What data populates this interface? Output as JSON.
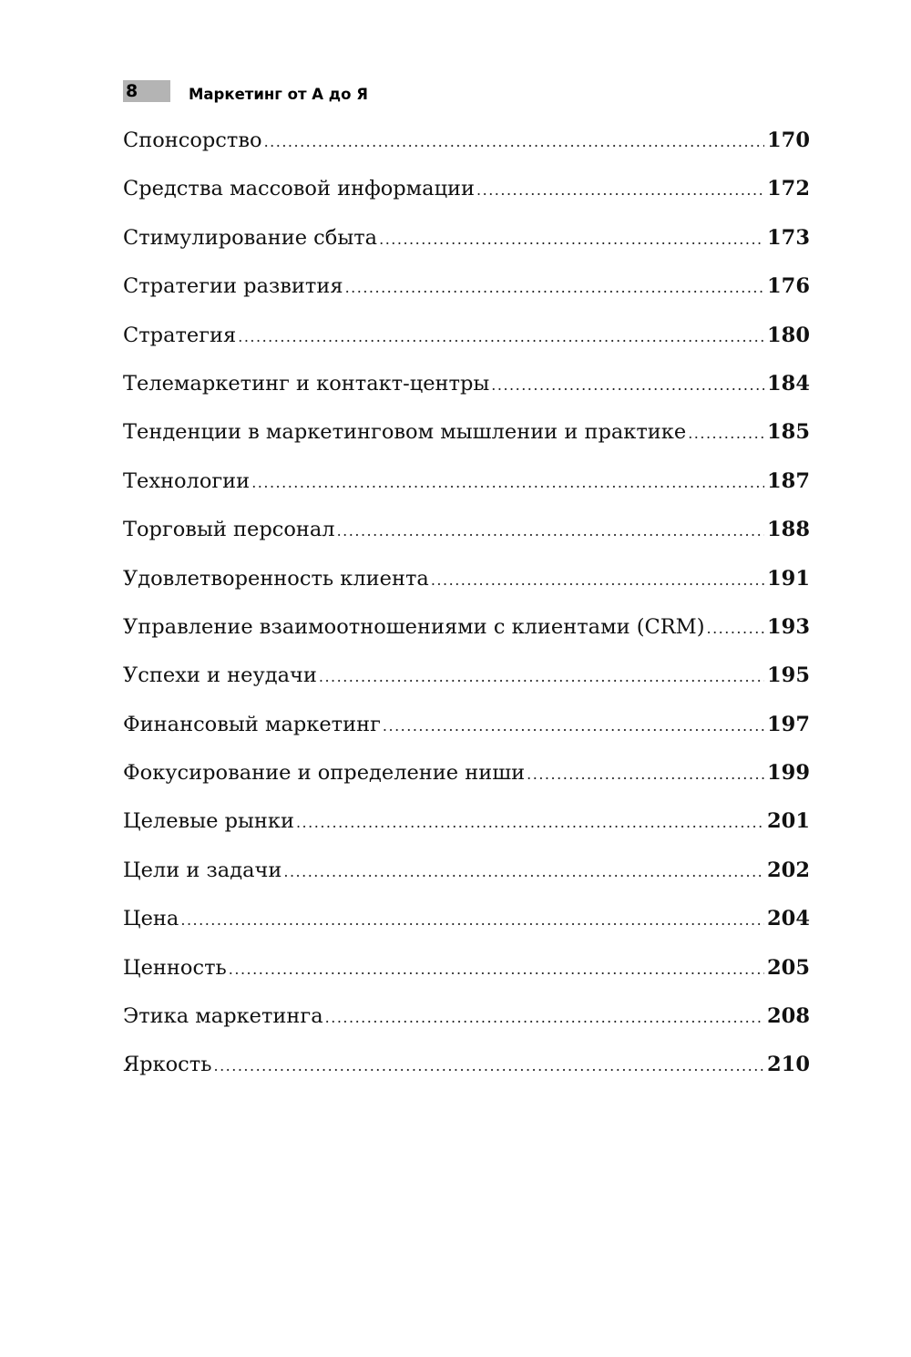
{
  "header": {
    "page_number": "8",
    "running_title": "Маркетинг от А до Я"
  },
  "toc": [
    {
      "title": "Спонсорство",
      "page": "170"
    },
    {
      "title": "Средства массовой информации",
      "page": "172"
    },
    {
      "title": "Стимулирование сбыта",
      "page": "173"
    },
    {
      "title": "Стратегии развития",
      "page": "176"
    },
    {
      "title": "Стратегия",
      "page": "180"
    },
    {
      "title": "Телемаркетинг и контакт-центры",
      "page": "184"
    },
    {
      "title": "Тенденции в маркетинговом мышлении и практике",
      "page": "185"
    },
    {
      "title": "Технологии",
      "page": "187"
    },
    {
      "title": "Торговый персонал",
      "page": "188"
    },
    {
      "title": "Удовлетворенность клиента",
      "page": "191"
    },
    {
      "title": "Управление взаимоотношениями с клиентами (CRM)",
      "page": "193"
    },
    {
      "title": "Успехи и неудачи",
      "page": "195"
    },
    {
      "title": "Финансовый маркетинг",
      "page": "197"
    },
    {
      "title": "Фокусирование и определение ниши",
      "page": "199"
    },
    {
      "title": "Целевые рынки",
      "page": "201"
    },
    {
      "title": "Цели и задачи",
      "page": "202"
    },
    {
      "title": "Цена",
      "page": "204"
    },
    {
      "title": "Ценность",
      "page": "205"
    },
    {
      "title": "Этика маркетинга",
      "page": "208"
    },
    {
      "title": "Яркость",
      "page": "210"
    }
  ]
}
